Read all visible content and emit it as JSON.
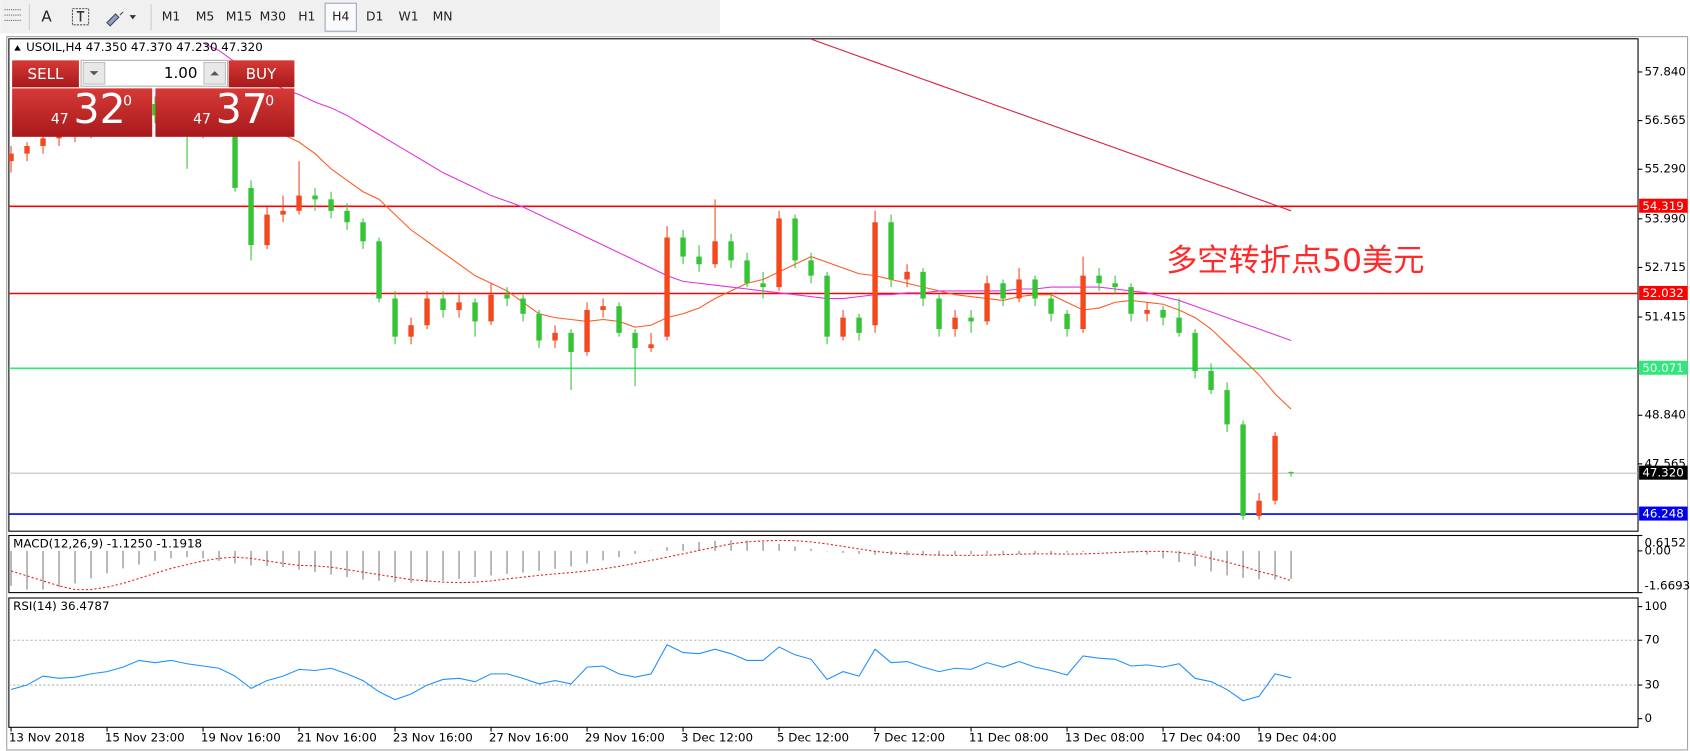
{
  "toolbar": {
    "text_tool": "A",
    "timeframes": [
      "M1",
      "M5",
      "M15",
      "M30",
      "H1",
      "H4",
      "D1",
      "W1",
      "MN"
    ],
    "active_timeframe": 5
  },
  "trade_panel": {
    "sell": "SELL",
    "buy": "BUY",
    "lots": "1.00",
    "bid": {
      "prefix": "47",
      "main": "32",
      "suffix": "0"
    },
    "ask": {
      "prefix": "47",
      "main": "37",
      "suffix": "0"
    }
  },
  "chart_data": [
    {
      "type": "candlestick",
      "title": "USOIL,H4 47.350 47.370 47.230 47.320",
      "categories": [
        "13 Nov 2018",
        null,
        null,
        null,
        null,
        null,
        "15 Nov 23:00",
        null,
        null,
        null,
        null,
        null,
        "19 Nov 16:00",
        null,
        null,
        null,
        null,
        null,
        "21 Nov 16:00",
        null,
        null,
        null,
        null,
        null,
        "23 Nov 16:00",
        null,
        null,
        null,
        null,
        null,
        "27 Nov 16:00",
        null,
        null,
        null,
        null,
        null,
        "29 Nov 16:00",
        null,
        null,
        null,
        null,
        null,
        "3 Dec 12:00",
        null,
        null,
        null,
        null,
        null,
        "5 Dec 12:00",
        null,
        null,
        null,
        null,
        null,
        "7 Dec 12:00",
        null,
        null,
        null,
        null,
        null,
        "11 Dec 08:00",
        null,
        null,
        null,
        null,
        null,
        "13 Dec 08:00",
        null,
        null,
        null,
        null,
        null,
        "17 Dec 04:00",
        null,
        null,
        null,
        null,
        null,
        "19 Dec 04:00",
        null,
        null
      ],
      "open": [
        55.5,
        55.7,
        55.9,
        56.1,
        56.2,
        56.3,
        56.5,
        56.7,
        56.9,
        57.0,
        56.7,
        56.5,
        56.3,
        56.6,
        56.4,
        54.8,
        53.3,
        54.1,
        54.2,
        54.6,
        54.5,
        54.2,
        53.9,
        53.4,
        51.9,
        50.9,
        51.2,
        51.9,
        51.6,
        51.8,
        51.3,
        52.0,
        51.9,
        51.5,
        50.8,
        51.0,
        50.5,
        51.6,
        51.7,
        51.0,
        50.6,
        50.9,
        53.5,
        53.0,
        52.8,
        53.4,
        52.9,
        52.3,
        52.2,
        54.0,
        52.9,
        52.5,
        50.9,
        51.4,
        51.2,
        53.9,
        52.4,
        52.6,
        51.9,
        51.1,
        51.4,
        51.3,
        52.3,
        51.9,
        52.4,
        51.9,
        51.5,
        51.1,
        52.5,
        52.3,
        52.2,
        51.5,
        51.6,
        51.4,
        51.0,
        50.0,
        49.5,
        48.6,
        46.2,
        46.6,
        47.35
      ],
      "high": [
        55.9,
        56.0,
        56.2,
        56.4,
        56.5,
        56.7,
        56.9,
        57.1,
        57.2,
        57.2,
        56.9,
        56.7,
        56.8,
        56.8,
        56.5,
        55.0,
        54.3,
        54.6,
        55.5,
        54.8,
        54.7,
        54.4,
        54.0,
        53.5,
        52.1,
        51.4,
        52.1,
        52.1,
        52.0,
        51.9,
        52.3,
        52.2,
        52.0,
        51.6,
        51.2,
        51.1,
        51.8,
        51.9,
        51.8,
        51.1,
        51.0,
        53.8,
        53.7,
        53.3,
        54.5,
        53.6,
        53.1,
        52.6,
        54.2,
        54.1,
        53.1,
        52.6,
        51.6,
        51.5,
        54.2,
        54.1,
        52.8,
        52.7,
        52.0,
        51.6,
        51.6,
        52.5,
        52.4,
        52.7,
        52.5,
        52.0,
        51.6,
        53.0,
        52.7,
        52.5,
        52.3,
        51.8,
        51.7,
        51.9,
        51.1,
        50.2,
        49.7,
        48.7,
        46.8,
        48.4,
        47.37
      ],
      "low": [
        55.2,
        55.5,
        55.7,
        55.9,
        56.0,
        56.1,
        56.3,
        56.5,
        56.7,
        56.5,
        56.3,
        55.3,
        56.1,
        56.2,
        54.7,
        52.9,
        53.2,
        53.9,
        54.1,
        54.2,
        54.0,
        53.7,
        53.2,
        51.8,
        50.7,
        50.7,
        51.1,
        51.4,
        51.4,
        50.9,
        51.2,
        51.7,
        51.3,
        50.6,
        50.6,
        49.5,
        50.4,
        51.4,
        50.9,
        49.6,
        50.5,
        50.8,
        52.8,
        52.6,
        52.7,
        52.7,
        52.2,
        51.9,
        52.1,
        52.7,
        52.3,
        50.7,
        50.8,
        50.8,
        51.0,
        52.2,
        52.2,
        51.7,
        50.9,
        50.9,
        51.0,
        51.2,
        51.7,
        51.8,
        51.7,
        51.3,
        50.9,
        51.0,
        52.1,
        52.0,
        51.3,
        51.3,
        51.2,
        50.9,
        49.8,
        49.4,
        48.4,
        46.1,
        46.1,
        46.5,
        47.23
      ],
      "close": [
        55.7,
        55.9,
        56.1,
        56.2,
        56.3,
        56.5,
        56.7,
        56.9,
        57.0,
        56.7,
        56.5,
        56.3,
        56.6,
        56.4,
        54.8,
        53.3,
        54.1,
        54.2,
        54.6,
        54.5,
        54.2,
        53.9,
        53.4,
        51.9,
        50.9,
        51.2,
        51.9,
        51.6,
        51.8,
        51.3,
        52.0,
        51.9,
        51.5,
        50.8,
        51.0,
        50.5,
        51.6,
        51.7,
        51.0,
        50.6,
        50.7,
        53.5,
        53.0,
        52.8,
        53.4,
        52.9,
        52.3,
        52.2,
        54.0,
        52.9,
        52.5,
        50.9,
        51.4,
        51.0,
        53.9,
        52.4,
        52.6,
        51.9,
        51.1,
        51.4,
        51.3,
        52.3,
        51.9,
        52.4,
        51.9,
        51.5,
        51.1,
        52.5,
        52.3,
        52.2,
        51.5,
        51.6,
        51.4,
        51.0,
        50.0,
        49.5,
        48.6,
        46.2,
        46.6,
        48.3,
        47.32
      ],
      "up_color": "#f5481f",
      "down_color": "#35c435",
      "ylim": [
        45.8,
        58.71
      ],
      "yticks": [
        {
          "value": 57.84,
          "label": "57.840"
        },
        56.565,
        {
          "value": 55.29,
          "label": "55.290"
        },
        {
          "value": 53.99,
          "label": "53.990"
        },
        52.715,
        51.415,
        {
          "value": 48.84,
          "label": "48.840"
        },
        47.565
      ],
      "lines": [
        {
          "color": "#ff5a1f",
          "values": [
            null,
            null,
            null,
            null,
            null,
            null,
            null,
            null,
            null,
            null,
            null,
            null,
            null,
            null,
            null,
            null,
            null,
            56.2,
            56.0,
            55.7,
            55.3,
            55.0,
            54.7,
            54.5,
            54.1,
            53.7,
            53.4,
            53.1,
            52.8,
            52.5,
            52.3,
            52.1,
            51.8,
            51.5,
            51.4,
            51.35,
            51.3,
            51.35,
            51.3,
            51.15,
            51.2,
            51.4,
            51.5,
            51.65,
            51.9,
            52.1,
            52.3,
            52.4,
            52.6,
            52.8,
            53.0,
            52.85,
            52.7,
            52.55,
            52.5,
            52.4,
            52.3,
            52.2,
            52.1,
            52.0,
            51.95,
            51.9,
            51.85,
            51.95,
            52.0,
            52.0,
            51.8,
            51.6,
            51.65,
            51.8,
            51.85,
            51.8,
            51.75,
            51.6,
            51.4,
            51.1,
            50.7,
            50.3,
            49.9,
            49.4,
            49.0
          ]
        },
        {
          "color": "#e033e0",
          "values": [
            null,
            null,
            null,
            null,
            null,
            null,
            null,
            null,
            null,
            null,
            null,
            null,
            58.6,
            58.4,
            58.1,
            57.9,
            57.6,
            57.4,
            57.25,
            57.05,
            56.9,
            56.7,
            56.45,
            56.2,
            55.95,
            55.7,
            55.45,
            55.2,
            55.0,
            54.8,
            54.6,
            54.45,
            54.3,
            54.1,
            53.9,
            53.7,
            53.5,
            53.3,
            53.1,
            52.9,
            52.7,
            52.5,
            52.35,
            52.3,
            52.25,
            52.2,
            52.15,
            52.1,
            52.05,
            52.0,
            51.95,
            51.9,
            51.9,
            51.95,
            52.0,
            52.0,
            52.05,
            52.05,
            52.1,
            52.1,
            52.1,
            52.1,
            52.1,
            52.15,
            52.15,
            52.2,
            52.2,
            52.2,
            52.2,
            52.15,
            52.1,
            52.05,
            51.95,
            51.85,
            51.7,
            51.55,
            51.4,
            51.25,
            51.1,
            50.95,
            50.8
          ]
        },
        {
          "color": "#dc1c3c",
          "values": [
            null,
            null,
            null,
            null,
            null,
            null,
            null,
            null,
            null,
            null,
            null,
            null,
            null,
            null,
            null,
            null,
            null,
            null,
            null,
            null,
            null,
            null,
            null,
            null,
            null,
            null,
            null,
            null,
            null,
            null,
            null,
            null,
            null,
            null,
            null,
            null,
            null,
            null,
            null,
            null,
            null,
            null,
            null,
            null,
            null,
            null,
            null,
            null,
            null,
            null,
            58.7,
            58.55,
            58.4,
            58.25,
            58.1,
            57.95,
            57.8,
            57.65,
            57.5,
            57.35,
            57.2,
            57.05,
            56.9,
            56.75,
            56.6,
            56.45,
            56.3,
            56.15,
            56.0,
            55.85,
            55.7,
            55.55,
            55.4,
            55.25,
            55.1,
            54.95,
            54.8,
            54.65,
            54.5,
            54.35,
            54.2
          ]
        }
      ],
      "hlines": [
        {
          "value": 54.319,
          "color": "#ff0000"
        },
        {
          "value": 52.032,
          "color": "#ff0000"
        },
        {
          "value": 50.071,
          "color": "#2ee87a"
        },
        {
          "value": 46.248,
          "color": "#0000ee"
        }
      ],
      "last_price": {
        "value": 47.32,
        "label": "47.320"
      },
      "annotation": "多空转折点50美元"
    },
    {
      "type": "macd",
      "title": "MACD(12,26,9) -1.1250 -1.1918",
      "ylim": [
        -1.6693,
        0.6152
      ],
      "yticks": [
        0.6152,
        {
          "value": 0,
          "label": "0.00"
        },
        -1.6693
      ],
      "histogram": {
        "color": "#a8a8a8",
        "values": [
          -1.4,
          -1.55,
          -1.55,
          -1.45,
          -1.3,
          -1.1,
          -0.9,
          -0.7,
          -0.55,
          -0.4,
          -0.3,
          -0.25,
          -0.3,
          -0.4,
          -0.5,
          -0.58,
          -0.6,
          -0.65,
          -0.75,
          -0.85,
          -0.95,
          -1.05,
          -1.15,
          -1.2,
          -1.25,
          -1.27,
          -1.25,
          -1.2,
          -1.12,
          -1.05,
          -0.98,
          -0.92,
          -0.87,
          -0.8,
          -0.72,
          -0.62,
          -0.5,
          -0.38,
          -0.25,
          -0.12,
          0.02,
          0.15,
          0.28,
          0.36,
          0.4,
          0.42,
          0.41,
          0.36,
          0.28,
          0.18,
          0.08,
          -0.02,
          -0.08,
          -0.12,
          -0.15,
          -0.17,
          -0.18,
          -0.18,
          -0.17,
          -0.15,
          -0.13,
          -0.12,
          -0.12,
          -0.13,
          -0.12,
          -0.1,
          -0.07,
          -0.04,
          -0.02,
          -0.02,
          -0.06,
          -0.15,
          -0.3,
          -0.45,
          -0.62,
          -0.82,
          -0.98,
          -1.08,
          -1.13,
          -1.15,
          -1.125
        ]
      },
      "signal": {
        "color": "#e02020",
        "values": [
          -0.8,
          -1.0,
          -1.2,
          -1.4,
          -1.55,
          -1.55,
          -1.45,
          -1.3,
          -1.1,
          -0.9,
          -0.7,
          -0.55,
          -0.4,
          -0.3,
          -0.25,
          -0.3,
          -0.4,
          -0.5,
          -0.58,
          -0.6,
          -0.65,
          -0.75,
          -0.85,
          -0.95,
          -1.05,
          -1.15,
          -1.2,
          -1.25,
          -1.27,
          -1.25,
          -1.2,
          -1.12,
          -1.05,
          -0.98,
          -0.92,
          -0.87,
          -0.8,
          -0.72,
          -0.62,
          -0.5,
          -0.38,
          -0.25,
          -0.12,
          0.02,
          0.15,
          0.28,
          0.36,
          0.4,
          0.42,
          0.41,
          0.36,
          0.28,
          0.18,
          0.08,
          -0.02,
          -0.08,
          -0.12,
          -0.15,
          -0.17,
          -0.18,
          -0.18,
          -0.17,
          -0.15,
          -0.13,
          -0.12,
          -0.12,
          -0.13,
          -0.12,
          -0.1,
          -0.07,
          -0.04,
          -0.02,
          -0.02,
          -0.06,
          -0.15,
          -0.3,
          -0.45,
          -0.62,
          -0.82,
          -0.98,
          -1.1918
        ]
      }
    },
    {
      "type": "line",
      "title": "RSI(14) 36.4787",
      "ylim": [
        -7.7,
        107.7
      ],
      "yticks": [
        100,
        70,
        30,
        0
      ],
      "levels": [
        70,
        30
      ],
      "color": "#1e90ff",
      "values": [
        26,
        30,
        38,
        36,
        37,
        40,
        42,
        46,
        52,
        50,
        52,
        49,
        47,
        45,
        38,
        27,
        34,
        38,
        44,
        43,
        45,
        40,
        34,
        24,
        17,
        22,
        30,
        35,
        36,
        33,
        40,
        40,
        36,
        31,
        34,
        31,
        46,
        47,
        40,
        37,
        40,
        66,
        59,
        58,
        62,
        58,
        52,
        52,
        64,
        57,
        53,
        35,
        42,
        38,
        62,
        50,
        51,
        46,
        42,
        45,
        44,
        50,
        46,
        51,
        46,
        43,
        39,
        56,
        54,
        53,
        47,
        48,
        46,
        49,
        36,
        33,
        26,
        16,
        20,
        40,
        36.4787
      ]
    }
  ]
}
